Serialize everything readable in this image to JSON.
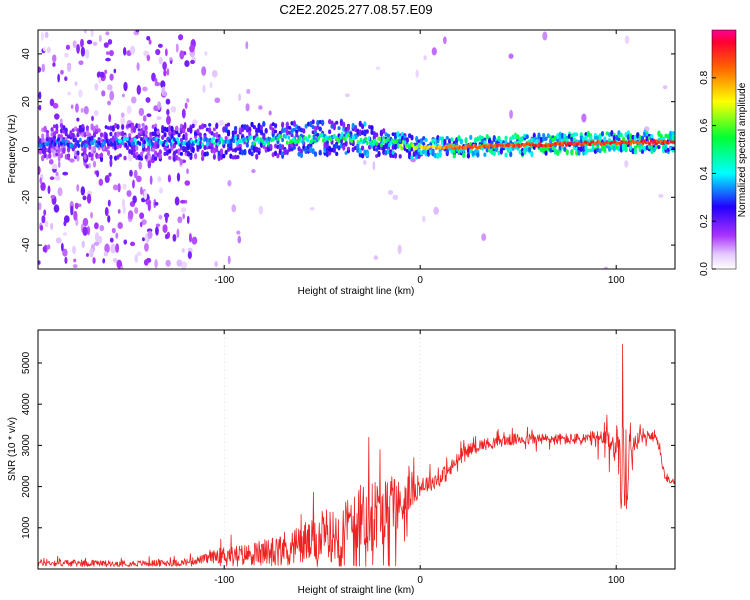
{
  "title": "C2E2.2025.277.08.57.E09",
  "colors": {
    "trace": "#ee2222",
    "axis": "#000000",
    "grid": "#bbbbbb",
    "spectrogram_core": "#ff1f1f",
    "spectrogram_low": "#d9b8ff"
  },
  "chart_data": [
    {
      "type": "heatmap",
      "title": "C2E2.2025.277.08.57.E09",
      "xlabel": "Height of straight line (km)",
      "ylabel": "Frequency (Hz)",
      "xlim": [
        -195,
        130
      ],
      "ylim": [
        -50,
        50
      ],
      "xticks": [
        -100,
        0,
        100
      ],
      "yticks": [
        -40,
        -20,
        0,
        20,
        40
      ],
      "xtick_labels": [
        "-100",
        "0",
        "100"
      ],
      "ytick_labels": [
        "-40",
        "-20",
        "0",
        "20",
        "40"
      ],
      "colorbar": {
        "label": "Normalized spectral amplitude",
        "range": [
          0.0,
          1.0
        ],
        "ticks": [
          0.0,
          0.2,
          0.4,
          0.6,
          0.8
        ],
        "tick_labels": [
          "0.0",
          "0.2",
          "0.4",
          "0.6",
          "0.8"
        ]
      },
      "ridge": {
        "description_points_x": [
          -195,
          -120,
          -80,
          -40,
          -20,
          0,
          20,
          60,
          100,
          130
        ],
        "center_freq_hz": [
          3,
          3,
          4,
          5,
          3,
          1,
          1,
          2,
          3,
          3
        ],
        "peak_amplitude": [
          0.35,
          0.45,
          0.55,
          0.6,
          0.65,
          0.75,
          0.9,
          0.95,
          0.95,
          0.95
        ]
      }
    },
    {
      "type": "line",
      "xlabel": "Height of straight line (km)",
      "ylabel": "SNR (10 * v/v)",
      "xlim": [
        -195,
        130
      ],
      "ylim": [
        0,
        5800
      ],
      "xticks": [
        -100,
        0,
        100
      ],
      "yticks": [
        1000,
        2000,
        3000,
        4000,
        5000
      ],
      "xtick_labels": [
        "-100",
        "0",
        "100"
      ],
      "ytick_labels": [
        "1000",
        "2000",
        "3000",
        "4000",
        "5000"
      ],
      "series": [
        {
          "name": "SNR",
          "x": [
            -195,
            -150,
            -120,
            -110,
            -100,
            -90,
            -80,
            -70,
            -60,
            -50,
            -45,
            -40,
            -35,
            -30,
            -25,
            -20,
            -15,
            -10,
            -5,
            0,
            5,
            10,
            15,
            20,
            25,
            30,
            40,
            50,
            60,
            70,
            80,
            90,
            95,
            100,
            103,
            105,
            107,
            110,
            115,
            120,
            122,
            125,
            130
          ],
          "values": [
            150,
            130,
            150,
            250,
            350,
            350,
            400,
            500,
            600,
            700,
            800,
            900,
            1000,
            1200,
            1300,
            1400,
            1500,
            1550,
            1900,
            2000,
            2100,
            2200,
            2400,
            2700,
            2900,
            3000,
            3100,
            3150,
            3150,
            3150,
            3150,
            3150,
            3100,
            3000,
            2500,
            2300,
            2600,
            3100,
            3200,
            3250,
            2900,
            2200,
            2100
          ],
          "noise": [
            120,
            100,
            120,
            150,
            300,
            350,
            450,
            600,
            700,
            800,
            900,
            1000,
            1200,
            1300,
            1300,
            1200,
            1100,
            900,
            700,
            300,
            300,
            300,
            300,
            250,
            200,
            200,
            200,
            200,
            200,
            200,
            200,
            300,
            400,
            700,
            1800,
            1800,
            1000,
            300,
            150,
            100,
            150,
            100,
            80
          ]
        }
      ]
    }
  ]
}
